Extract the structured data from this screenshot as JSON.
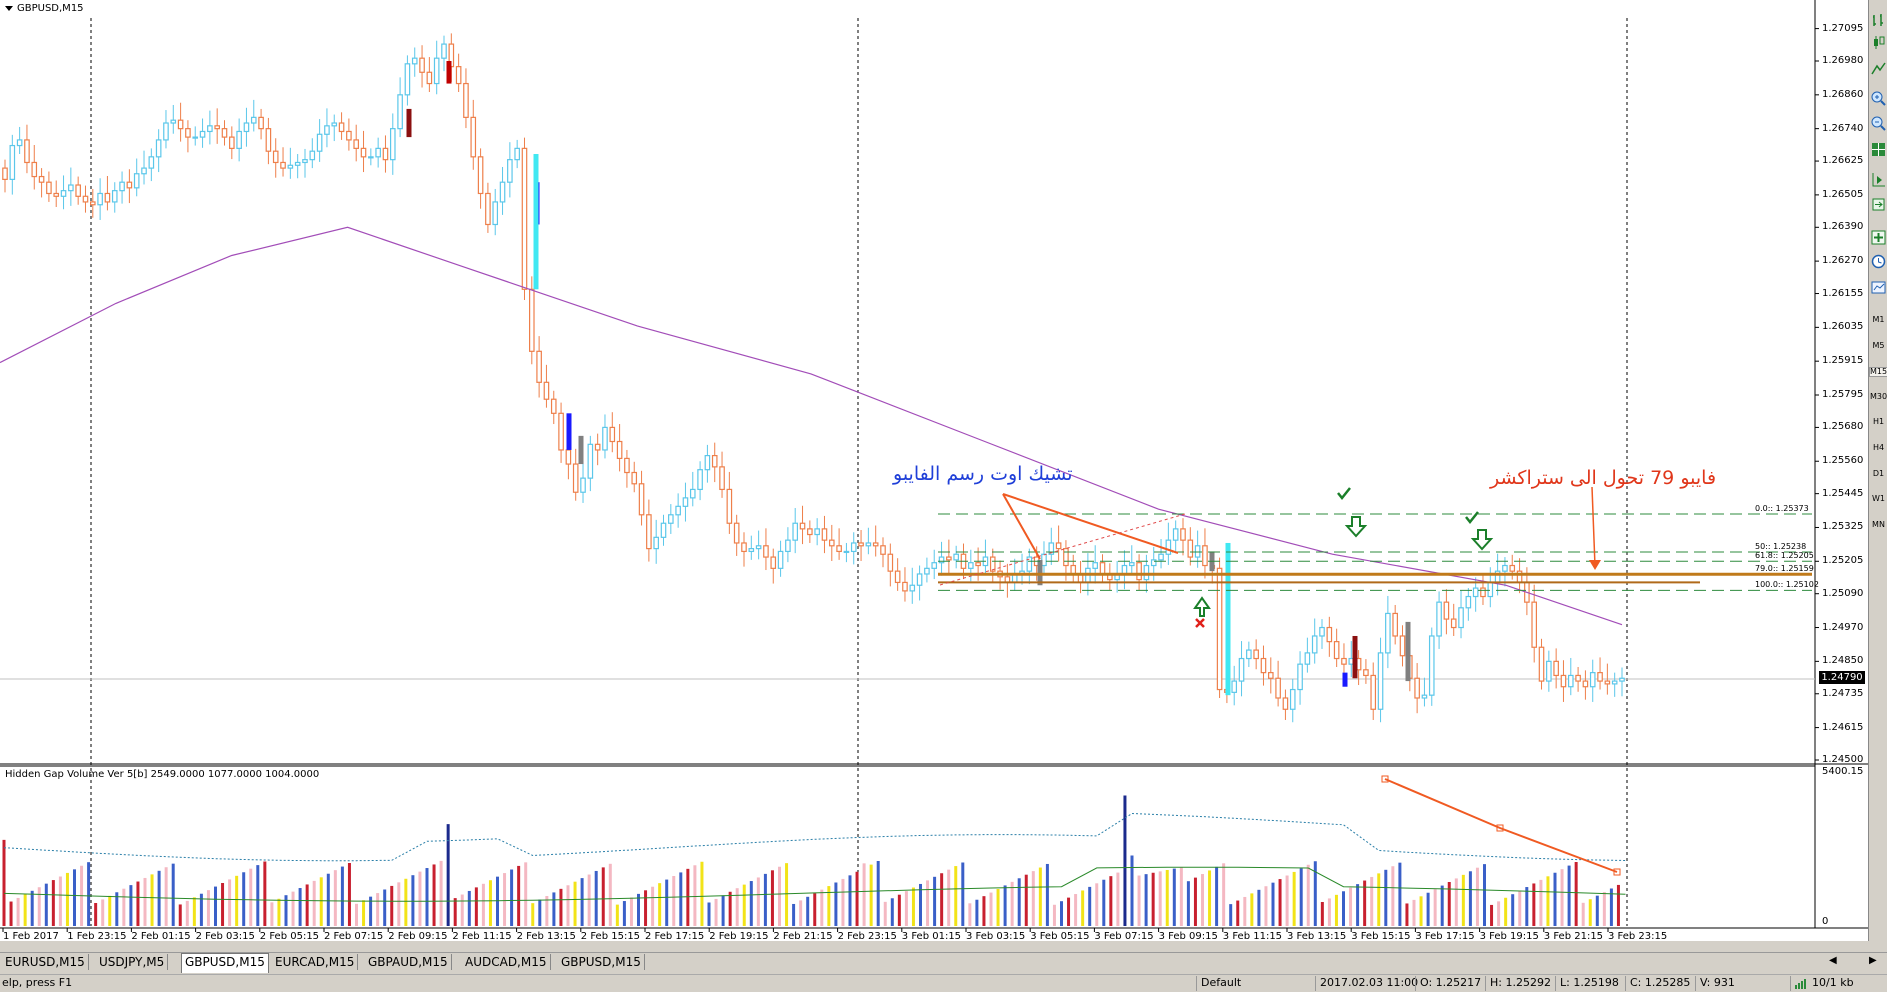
{
  "window": {
    "chart_title": "GBPUSD,M15",
    "indicator_title": "Hidden Gap Volume Ver 5[b] 2549.0000 1077.0000 1004.0000"
  },
  "chart_data": {
    "type": "candlestick",
    "symbol": "GBPUSD",
    "timeframe": "M15",
    "ylim": [
      1.245,
      1.2731
    ],
    "price_ticks": [
      "1.27095",
      "1.26980",
      "1.26860",
      "1.26740",
      "1.26625",
      "1.26505",
      "1.26390",
      "1.26270",
      "1.26155",
      "1.26035",
      "1.25915",
      "1.25795",
      "1.25680",
      "1.25560",
      "1.25445",
      "1.25325",
      "1.25205",
      "1.25090",
      "1.24970",
      "1.24850",
      "1.24735",
      "1.24615",
      "1.24500"
    ],
    "current_price": "1.24790",
    "time_labels": [
      "1 Feb 2017",
      "1 Feb 23:15",
      "2 Feb 01:15",
      "2 Feb 03:15",
      "2 Feb 05:15",
      "2 Feb 07:15",
      "2 Feb 09:15",
      "2 Feb 11:15",
      "2 Feb 13:15",
      "2 Feb 15:15",
      "2 Feb 17:15",
      "2 Feb 19:15",
      "2 Feb 21:15",
      "2 Feb 23:15",
      "3 Feb 01:15",
      "3 Feb 03:15",
      "3 Feb 05:15",
      "3 Feb 07:15",
      "3 Feb 09:15",
      "3 Feb 11:15",
      "3 Feb 13:15",
      "3 Feb 15:15",
      "3 Feb 17:15",
      "3 Feb 19:15",
      "3 Feb 21:15",
      "3 Feb 23:15"
    ],
    "close_series": [
      1.2656,
      1.2668,
      1.267,
      1.2662,
      1.2657,
      1.2655,
      1.2651,
      1.265,
      1.2652,
      1.2654,
      1.265,
      1.2648,
      1.2647,
      1.2651,
      1.2648,
      1.2652,
      1.2655,
      1.2653,
      1.2658,
      1.266,
      1.2664,
      1.267,
      1.2676,
      1.2677,
      1.2674,
      1.2671,
      1.2671,
      1.2673,
      1.2675,
      1.2674,
      1.2671,
      1.2667,
      1.2673,
      1.2676,
      1.2678,
      1.2674,
      1.2666,
      1.2662,
      1.266,
      1.2661,
      1.2662,
      1.2663,
      1.2666,
      1.2672,
      1.2675,
      1.2676,
      1.2673,
      1.267,
      1.2667,
      1.2664,
      1.2664,
      1.2667,
      1.2663,
      1.2674,
      1.2686,
      1.2697,
      1.2699,
      1.2694,
      1.269,
      1.2699,
      1.2704,
      1.2696,
      1.269,
      1.2678,
      1.2664,
      1.2651,
      1.264,
      1.2648,
      1.2655,
      1.2663,
      1.2667,
      1.2617,
      1.2595,
      1.2584,
      1.2578,
      1.2573,
      1.256,
      1.2555,
      1.2545,
      1.255,
      1.2562,
      1.256,
      1.2568,
      1.2563,
      1.2557,
      1.2552,
      1.2548,
      1.2537,
      1.2525,
      1.2529,
      1.2534,
      1.2537,
      1.254,
      1.2543,
      1.2546,
      1.2553,
      1.2558,
      1.2554,
      1.2546,
      1.2534,
      1.2527,
      1.2524,
      1.2525,
      1.2526,
      1.2522,
      1.2518,
      1.2524,
      1.2528,
      1.2534,
      1.2532,
      1.253,
      1.2532,
      1.2528,
      1.2526,
      1.2524,
      1.2524,
      1.2527,
      1.2526,
      1.2527,
      1.2526,
      1.2523,
      1.2517,
      1.2513,
      1.251,
      1.2512,
      1.2516,
      1.2518,
      1.252,
      1.2522,
      1.2521,
      1.2523,
      1.2518,
      1.252,
      1.2519,
      1.2522,
      1.2517,
      1.2515,
      1.2513,
      1.2516,
      1.2517,
      1.2522,
      1.2519,
      1.2523,
      1.2527,
      1.2525,
      1.2519,
      1.2516,
      1.2513,
      1.2518,
      1.252,
      1.2516,
      1.2514,
      1.2516,
      1.2519,
      1.252,
      1.2514,
      1.2519,
      1.2521,
      1.2523,
      1.2528,
      1.2532,
      1.2528,
      1.2522,
      1.2526,
      1.2519,
      1.2518,
      1.2475,
      1.2474,
      1.2478,
      1.2486,
      1.2489,
      1.2486,
      1.2481,
      1.2479,
      1.2472,
      1.2468,
      1.2475,
      1.2484,
      1.2488,
      1.2494,
      1.2497,
      1.2492,
      1.2486,
      1.2484,
      1.2486,
      1.2482,
      1.248,
      1.2468,
      1.2488,
      1.2502,
      1.2494,
      1.2487,
      1.2479,
      1.2472,
      1.2473,
      1.2494,
      1.2506,
      1.25,
      1.2497,
      1.2504,
      1.2508,
      1.2511,
      1.2508,
      1.2513,
      1.2517,
      1.2519,
      1.2517,
      1.2513,
      1.2506,
      1.249,
      1.2478,
      1.2485,
      1.248,
      1.2476,
      1.248,
      1.2478,
      1.2476,
      1.2481,
      1.2478,
      1.2477,
      1.2478,
      1.2479
    ],
    "moving_average": [
      [
        0,
        1.2591
      ],
      [
        100,
        1.2612
      ],
      [
        200,
        1.2629
      ],
      [
        300,
        1.2639
      ],
      [
        400,
        1.2625
      ],
      [
        550,
        1.2604
      ],
      [
        700,
        1.2587
      ],
      [
        850,
        1.2563
      ],
      [
        1000,
        1.2539
      ],
      [
        1150,
        1.2523
      ],
      [
        1300,
        1.2512
      ],
      [
        1400,
        1.2498
      ]
    ],
    "fibonacci": {
      "levels": [
        {
          "label": "0.0:: 1.25373",
          "price": 1.25373
        },
        {
          "label": "50:: 1.25238",
          "price": 1.25238
        },
        {
          "label": "61.8:: 1.25205",
          "price": 1.25205
        },
        {
          "label": "79.0:: 1.25159",
          "price": 1.25159
        },
        {
          "label": "100.0:: 1.25102",
          "price": 1.25102
        }
      ],
      "highlight_color": "#c07a1a",
      "level_color": "#2e8b3e"
    },
    "volume": {
      "max_label": "5400.15",
      "zero_label": "0",
      "colors": {
        "up": "#3a5fc8",
        "down": "#c8202f",
        "pale": "#f4b8c2",
        "yellow": "#f2e318",
        "navy": "#1b2a8c"
      }
    },
    "annotations": {
      "blue_text": "تشيك اوت رسم الفايبو",
      "red_text": "فايبو 79 تحول الى ستراكشر"
    },
    "colors": {
      "bull": "#5bc7ea",
      "bear": "#ee7f4a",
      "ma": "#a24db8",
      "annotation_line": "#f05a22"
    }
  },
  "tabs": [
    "EURUSD,M15",
    "USDJPY,M5",
    "GBPUSD,M15",
    "EURCAD,M15",
    "GBPAUD,M15",
    "AUDCAD,M15",
    "GBPUSD,M15"
  ],
  "selected_tab": "GBPUSD,M15",
  "status": {
    "help": "elp, press F1",
    "profile": "Default",
    "time": "2017.02.03 11:00",
    "open": "O: 1.25217",
    "high": "H: 1.25292",
    "low": "L: 1.25198",
    "close": "C: 1.25285",
    "volume": "V: 931",
    "traffic": "10/1 kb"
  },
  "timeframes": [
    "M1",
    "M5",
    "M15",
    "M30",
    "H1",
    "H4",
    "D1",
    "W1",
    "MN"
  ],
  "selected_timeframe": "M15"
}
